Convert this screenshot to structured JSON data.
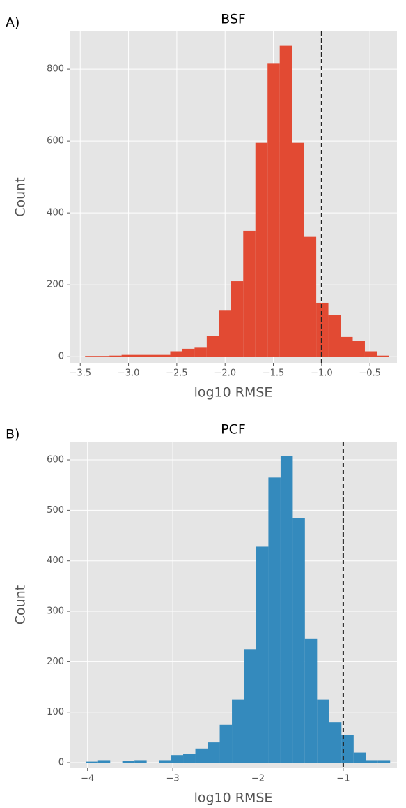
{
  "chart_data": [
    {
      "type": "histogram",
      "panel_label": "A)",
      "title": "BSF",
      "xlabel": "log10 RMSE",
      "ylabel": "Count",
      "color": "#E24A33",
      "grid": true,
      "vline": -1,
      "bins": [
        -3.45,
        -3.324,
        -3.198,
        -3.072,
        -2.946,
        -2.82,
        -2.694,
        -2.568,
        -2.442,
        -2.316,
        -2.19,
        -2.064,
        -1.938,
        -1.812,
        -1.686,
        -1.56,
        -1.434,
        -1.308,
        -1.182,
        -1.056,
        -0.93,
        -0.804,
        -0.678,
        -0.552,
        -0.426,
        -0.3
      ],
      "values": [
        2,
        2,
        3,
        5,
        5,
        5,
        5,
        15,
        22,
        25,
        58,
        130,
        210,
        350,
        595,
        815,
        865,
        595,
        335,
        150,
        115,
        55,
        45,
        15,
        3
      ],
      "xlim": [
        -3.61,
        -0.22
      ],
      "ylim": [
        -17,
        905
      ],
      "xticks": [
        {
          "value": -3.5,
          "label": "−3.5"
        },
        {
          "value": -3.0,
          "label": "−3.0"
        },
        {
          "value": -2.5,
          "label": "−2.5"
        },
        {
          "value": -2.0,
          "label": "−2.0"
        },
        {
          "value": -1.5,
          "label": "−1.5"
        },
        {
          "value": -1.0,
          "label": "−1.0"
        },
        {
          "value": -0.5,
          "label": "−0.5"
        }
      ],
      "yticks": [
        0,
        200,
        400,
        600,
        800
      ]
    },
    {
      "type": "histogram",
      "panel_label": "B)",
      "title": "PCF",
      "xlabel": "log10 RMSE",
      "ylabel": "Count",
      "color": "#348ABD",
      "grid": true,
      "vline": -1,
      "bins": [
        -4.02,
        -3.877,
        -3.734,
        -3.592,
        -3.449,
        -3.306,
        -3.163,
        -3.02,
        -2.878,
        -2.735,
        -2.592,
        -2.449,
        -2.306,
        -2.164,
        -2.021,
        -1.878,
        -1.735,
        -1.592,
        -1.45,
        -1.307,
        -1.164,
        -1.021,
        -0.878,
        -0.736,
        -0.593,
        -0.45
      ],
      "values": [
        2,
        5,
        0,
        3,
        5,
        0,
        5,
        15,
        18,
        28,
        40,
        75,
        125,
        225,
        428,
        565,
        607,
        485,
        245,
        125,
        80,
        55,
        20,
        5,
        5
      ],
      "xlim": [
        -4.21,
        -0.37
      ],
      "ylim": [
        -11,
        636
      ],
      "xticks": [
        {
          "value": -4,
          "label": "−4"
        },
        {
          "value": -3,
          "label": "−3"
        },
        {
          "value": -2,
          "label": "−2"
        },
        {
          "value": -1,
          "label": "−1"
        }
      ],
      "yticks": [
        0,
        100,
        200,
        300,
        400,
        500,
        600
      ]
    }
  ]
}
